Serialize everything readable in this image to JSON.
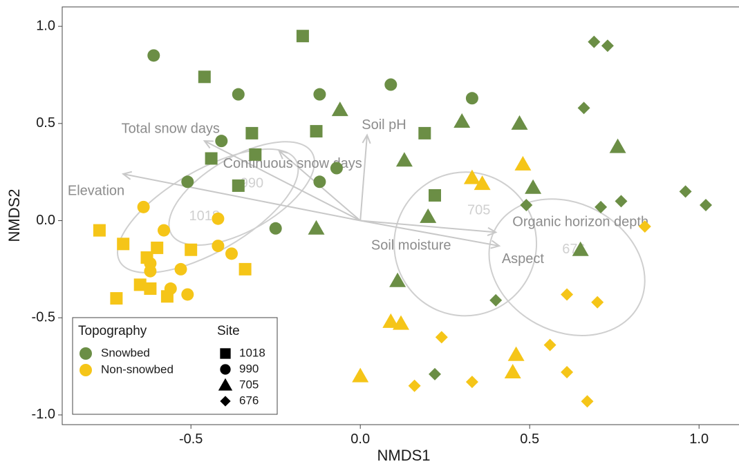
{
  "chart_data": {
    "type": "scatter",
    "xlabel": "NMDS1",
    "ylabel": "NMDS2",
    "xlim": [
      -0.88,
      1.12
    ],
    "ylim": [
      -1.05,
      1.1
    ],
    "x_ticks": [
      -0.5,
      0.0,
      0.5,
      1.0
    ],
    "x_tick_labels": [
      "-0.5",
      "0.0",
      "0.5",
      "1.0"
    ],
    "y_ticks": [
      -1.0,
      -0.5,
      0.0,
      0.5,
      1.0
    ],
    "y_tick_labels": [
      "-1.0",
      "-0.5",
      "0.0",
      "0.5",
      "1.0"
    ],
    "grid": false,
    "colors": {
      "Snowbed": "#6b8e45",
      "Non-snowbed": "#f5c518",
      "vectors": "#c8c8c8",
      "ellipses": "#cfcfcf"
    },
    "legend": {
      "placement": "bottom-left",
      "topography_title": "Topography",
      "topography_items": [
        {
          "label": "Snowbed",
          "color": "#6b8e45"
        },
        {
          "label": "Non-snowbed",
          "color": "#f5c518"
        }
      ],
      "site_title": "Site",
      "site_items": [
        {
          "label": "1018",
          "shape": "square"
        },
        {
          "label": "990",
          "shape": "circle"
        },
        {
          "label": "705",
          "shape": "triangle"
        },
        {
          "label": "676",
          "shape": "diamond"
        }
      ]
    },
    "vectors": [
      {
        "label": "Total snow days",
        "x": -0.46,
        "y": 0.41
      },
      {
        "label": "Continuous snow days",
        "x": -0.24,
        "y": 0.36
      },
      {
        "label": "Soil pH",
        "x": 0.02,
        "y": 0.44
      },
      {
        "label": "Elevation",
        "x": -0.7,
        "y": 0.24
      },
      {
        "label": "Organic horizon depth",
        "x": 0.4,
        "y": -0.06
      },
      {
        "label": "Soil moisture",
        "x": 0.41,
        "y": -0.13
      }
    ],
    "vector_labels": [
      {
        "label": "Total snow days",
        "x": -0.56,
        "y": 0.47
      },
      {
        "label": "Continuous snow days",
        "x": -0.2,
        "y": 0.29
      },
      {
        "label": "Soil pH",
        "x": 0.07,
        "y": 0.49
      },
      {
        "label": "Elevation",
        "x": -0.78,
        "y": 0.15
      },
      {
        "label": "Organic horizon depth",
        "x": 0.65,
        "y": -0.01
      },
      {
        "label": "Soil moisture",
        "x": 0.15,
        "y": -0.13
      },
      {
        "label": "Aspect",
        "x": 0.48,
        "y": -0.2
      }
    ],
    "ellipses": [
      {
        "site": "1018",
        "cx": -0.45,
        "cy": 0.05,
        "rx": 0.3,
        "ry": 0.21,
        "angle": 30
      },
      {
        "site": "990",
        "cx": -0.35,
        "cy": 0.14,
        "rx": 0.24,
        "ry": 0.19,
        "angle": 30
      },
      {
        "site": "705",
        "cx": 0.31,
        "cy": -0.12,
        "rx": 0.21,
        "ry": 0.37,
        "angle": -12
      },
      {
        "site": "676",
        "cx": 0.61,
        "cy": -0.24,
        "rx": 0.24,
        "ry": 0.33,
        "angle": -28
      }
    ],
    "site_labels": [
      {
        "label": "1018",
        "x": -0.46,
        "y": 0.02
      },
      {
        "label": "990",
        "x": -0.32,
        "y": 0.19
      },
      {
        "label": "705",
        "x": 0.35,
        "y": 0.05
      },
      {
        "label": "676",
        "x": 0.63,
        "y": -0.15
      }
    ],
    "points": [
      {
        "x": -0.61,
        "y": 0.85,
        "shape": "circle",
        "group": "Snowbed"
      },
      {
        "x": -0.17,
        "y": 0.95,
        "shape": "square",
        "group": "Snowbed"
      },
      {
        "x": -0.46,
        "y": 0.74,
        "shape": "square",
        "group": "Snowbed"
      },
      {
        "x": -0.36,
        "y": 0.65,
        "shape": "circle",
        "group": "Snowbed"
      },
      {
        "x": -0.12,
        "y": 0.65,
        "shape": "circle",
        "group": "Snowbed"
      },
      {
        "x": 0.09,
        "y": 0.7,
        "shape": "circle",
        "group": "Snowbed"
      },
      {
        "x": 0.33,
        "y": 0.63,
        "shape": "circle",
        "group": "Snowbed"
      },
      {
        "x": -0.06,
        "y": 0.57,
        "shape": "triangle",
        "group": "Snowbed"
      },
      {
        "x": 0.3,
        "y": 0.51,
        "shape": "triangle",
        "group": "Snowbed"
      },
      {
        "x": 0.47,
        "y": 0.5,
        "shape": "triangle",
        "group": "Snowbed"
      },
      {
        "x": -0.32,
        "y": 0.45,
        "shape": "square",
        "group": "Snowbed"
      },
      {
        "x": -0.13,
        "y": 0.46,
        "shape": "square",
        "group": "Snowbed"
      },
      {
        "x": 0.19,
        "y": 0.45,
        "shape": "square",
        "group": "Snowbed"
      },
      {
        "x": -0.41,
        "y": 0.41,
        "shape": "circle",
        "group": "Snowbed"
      },
      {
        "x": -0.31,
        "y": 0.34,
        "shape": "square",
        "group": "Snowbed"
      },
      {
        "x": -0.44,
        "y": 0.32,
        "shape": "square",
        "group": "Snowbed"
      },
      {
        "x": -0.07,
        "y": 0.27,
        "shape": "circle",
        "group": "Snowbed"
      },
      {
        "x": 0.13,
        "y": 0.31,
        "shape": "triangle",
        "group": "Snowbed"
      },
      {
        "x": -0.51,
        "y": 0.2,
        "shape": "circle",
        "group": "Snowbed"
      },
      {
        "x": -0.36,
        "y": 0.18,
        "shape": "square",
        "group": "Snowbed"
      },
      {
        "x": -0.12,
        "y": 0.2,
        "shape": "circle",
        "group": "Snowbed"
      },
      {
        "x": 0.22,
        "y": 0.13,
        "shape": "square",
        "group": "Snowbed"
      },
      {
        "x": 0.51,
        "y": 0.17,
        "shape": "triangle",
        "group": "Snowbed"
      },
      {
        "x": 0.2,
        "y": 0.02,
        "shape": "triangle",
        "group": "Snowbed"
      },
      {
        "x": -0.25,
        "y": -0.04,
        "shape": "circle",
        "group": "Snowbed"
      },
      {
        "x": -0.13,
        "y": -0.04,
        "shape": "triangle",
        "group": "Snowbed"
      },
      {
        "x": 0.11,
        "y": -0.31,
        "shape": "triangle",
        "group": "Snowbed"
      },
      {
        "x": 0.65,
        "y": -0.15,
        "shape": "triangle",
        "group": "Snowbed"
      },
      {
        "x": 0.76,
        "y": 0.38,
        "shape": "triangle",
        "group": "Snowbed"
      },
      {
        "x": 0.69,
        "y": 0.92,
        "shape": "diamond",
        "group": "Snowbed"
      },
      {
        "x": 0.73,
        "y": 0.9,
        "shape": "diamond",
        "group": "Snowbed"
      },
      {
        "x": 0.66,
        "y": 0.58,
        "shape": "diamond",
        "group": "Snowbed"
      },
      {
        "x": 0.96,
        "y": 0.15,
        "shape": "diamond",
        "group": "Snowbed"
      },
      {
        "x": 1.02,
        "y": 0.08,
        "shape": "diamond",
        "group": "Snowbed"
      },
      {
        "x": 0.77,
        "y": 0.1,
        "shape": "diamond",
        "group": "Snowbed"
      },
      {
        "x": 0.71,
        "y": 0.07,
        "shape": "diamond",
        "group": "Snowbed"
      },
      {
        "x": 0.49,
        "y": 0.08,
        "shape": "diamond",
        "group": "Snowbed"
      },
      {
        "x": 0.4,
        "y": -0.41,
        "shape": "diamond",
        "group": "Snowbed"
      },
      {
        "x": 0.22,
        "y": -0.79,
        "shape": "diamond",
        "group": "Snowbed"
      },
      {
        "x": -0.64,
        "y": 0.07,
        "shape": "circle",
        "group": "Non-snowbed"
      },
      {
        "x": -0.42,
        "y": 0.01,
        "shape": "circle",
        "group": "Non-snowbed"
      },
      {
        "x": -0.77,
        "y": -0.05,
        "shape": "square",
        "group": "Non-snowbed"
      },
      {
        "x": -0.58,
        "y": -0.05,
        "shape": "circle",
        "group": "Non-snowbed"
      },
      {
        "x": -0.7,
        "y": -0.12,
        "shape": "square",
        "group": "Non-snowbed"
      },
      {
        "x": -0.6,
        "y": -0.14,
        "shape": "square",
        "group": "Non-snowbed"
      },
      {
        "x": -0.5,
        "y": -0.15,
        "shape": "square",
        "group": "Non-snowbed"
      },
      {
        "x": -0.42,
        "y": -0.13,
        "shape": "circle",
        "group": "Non-snowbed"
      },
      {
        "x": -0.38,
        "y": -0.17,
        "shape": "circle",
        "group": "Non-snowbed"
      },
      {
        "x": -0.63,
        "y": -0.19,
        "shape": "square",
        "group": "Non-snowbed"
      },
      {
        "x": -0.62,
        "y": -0.22,
        "shape": "circle",
        "group": "Non-snowbed"
      },
      {
        "x": -0.53,
        "y": -0.25,
        "shape": "circle",
        "group": "Non-snowbed"
      },
      {
        "x": -0.34,
        "y": -0.25,
        "shape": "square",
        "group": "Non-snowbed"
      },
      {
        "x": -0.62,
        "y": -0.26,
        "shape": "circle",
        "group": "Non-snowbed"
      },
      {
        "x": -0.65,
        "y": -0.33,
        "shape": "square",
        "group": "Non-snowbed"
      },
      {
        "x": -0.62,
        "y": -0.35,
        "shape": "square",
        "group": "Non-snowbed"
      },
      {
        "x": -0.56,
        "y": -0.35,
        "shape": "circle",
        "group": "Non-snowbed"
      },
      {
        "x": -0.51,
        "y": -0.38,
        "shape": "circle",
        "group": "Non-snowbed"
      },
      {
        "x": -0.57,
        "y": -0.39,
        "shape": "square",
        "group": "Non-snowbed"
      },
      {
        "x": -0.72,
        "y": -0.4,
        "shape": "square",
        "group": "Non-snowbed"
      },
      {
        "x": 0.48,
        "y": 0.29,
        "shape": "triangle",
        "group": "Non-snowbed"
      },
      {
        "x": 0.33,
        "y": 0.22,
        "shape": "triangle",
        "group": "Non-snowbed"
      },
      {
        "x": 0.36,
        "y": 0.19,
        "shape": "triangle",
        "group": "Non-snowbed"
      },
      {
        "x": 0.09,
        "y": -0.52,
        "shape": "triangle",
        "group": "Non-snowbed"
      },
      {
        "x": 0.12,
        "y": -0.53,
        "shape": "triangle",
        "group": "Non-snowbed"
      },
      {
        "x": 0.46,
        "y": -0.69,
        "shape": "triangle",
        "group": "Non-snowbed"
      },
      {
        "x": 0.45,
        "y": -0.78,
        "shape": "triangle",
        "group": "Non-snowbed"
      },
      {
        "x": 0.0,
        "y": -0.8,
        "shape": "triangle",
        "group": "Non-snowbed"
      },
      {
        "x": 0.84,
        "y": -0.03,
        "shape": "diamond",
        "group": "Non-snowbed"
      },
      {
        "x": 0.61,
        "y": -0.38,
        "shape": "diamond",
        "group": "Non-snowbed"
      },
      {
        "x": 0.7,
        "y": -0.42,
        "shape": "diamond",
        "group": "Non-snowbed"
      },
      {
        "x": 0.24,
        "y": -0.6,
        "shape": "diamond",
        "group": "Non-snowbed"
      },
      {
        "x": 0.56,
        "y": -0.64,
        "shape": "diamond",
        "group": "Non-snowbed"
      },
      {
        "x": 0.61,
        "y": -0.78,
        "shape": "diamond",
        "group": "Non-snowbed"
      },
      {
        "x": 0.33,
        "y": -0.83,
        "shape": "diamond",
        "group": "Non-snowbed"
      },
      {
        "x": 0.16,
        "y": -0.85,
        "shape": "diamond",
        "group": "Non-snowbed"
      },
      {
        "x": 0.67,
        "y": -0.93,
        "shape": "diamond",
        "group": "Non-snowbed"
      }
    ]
  }
}
